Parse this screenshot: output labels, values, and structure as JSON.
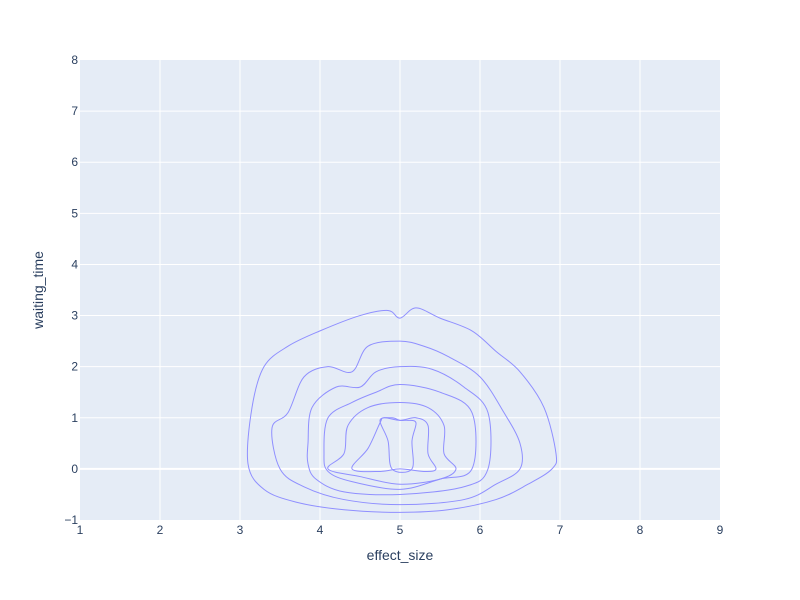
{
  "chart_data": {
    "type": "contour",
    "xlabel": "effect_size",
    "ylabel": "waiting_time",
    "xlim": [
      1,
      9
    ],
    "ylim": [
      -1,
      8
    ],
    "x_ticks": [
      "1",
      "2",
      "3",
      "4",
      "5",
      "6",
      "7",
      "8",
      "9"
    ],
    "y_ticks": [
      "−1",
      "0",
      "1",
      "2",
      "3",
      "4",
      "5",
      "6",
      "7",
      "8"
    ],
    "grid": true,
    "legend": "none",
    "colors": {
      "plot_background": "#E5ECF6",
      "grid": "#ffffff",
      "contour_line": "#8F8FFF",
      "text": "#2a3f5f"
    },
    "contours": [
      {
        "level": 1,
        "points": [
          [
            3.1,
            0.1
          ],
          [
            3.15,
            1.2
          ],
          [
            3.3,
            2.0
          ],
          [
            3.6,
            2.4
          ],
          [
            4.0,
            2.7
          ],
          [
            4.5,
            3.0
          ],
          [
            4.85,
            3.1
          ],
          [
            5.0,
            2.95
          ],
          [
            5.2,
            3.15
          ],
          [
            5.5,
            2.95
          ],
          [
            5.9,
            2.7
          ],
          [
            6.2,
            2.3
          ],
          [
            6.5,
            1.9
          ],
          [
            6.8,
            1.2
          ],
          [
            6.95,
            0.3
          ],
          [
            6.9,
            0.0
          ],
          [
            6.6,
            -0.3
          ],
          [
            6.2,
            -0.6
          ],
          [
            5.6,
            -0.8
          ],
          [
            5.0,
            -0.85
          ],
          [
            4.3,
            -0.8
          ],
          [
            3.7,
            -0.65
          ],
          [
            3.3,
            -0.4
          ]
        ]
      },
      {
        "level": 2,
        "points": [
          [
            3.6,
            1.1
          ],
          [
            3.8,
            1.8
          ],
          [
            4.1,
            2.0
          ],
          [
            4.4,
            1.9
          ],
          [
            4.6,
            2.4
          ],
          [
            5.0,
            2.5
          ],
          [
            5.3,
            2.4
          ],
          [
            5.6,
            2.2
          ],
          [
            6.0,
            1.8
          ],
          [
            6.3,
            1.1
          ],
          [
            6.5,
            0.5
          ],
          [
            6.5,
            0.0
          ],
          [
            6.2,
            -0.3
          ],
          [
            5.8,
            -0.6
          ],
          [
            5.0,
            -0.7
          ],
          [
            4.3,
            -0.6
          ],
          [
            3.8,
            -0.35
          ],
          [
            3.5,
            0.0
          ],
          [
            3.4,
            0.8
          ]
        ]
      },
      {
        "level": 3,
        "points": [
          [
            3.85,
            0.5
          ],
          [
            3.9,
            1.2
          ],
          [
            4.2,
            1.6
          ],
          [
            4.5,
            1.6
          ],
          [
            4.7,
            1.9
          ],
          [
            5.0,
            2.0
          ],
          [
            5.4,
            1.95
          ],
          [
            5.8,
            1.6
          ],
          [
            6.1,
            1.1
          ],
          [
            6.1,
            0.0
          ],
          [
            5.8,
            -0.35
          ],
          [
            5.0,
            -0.5
          ],
          [
            4.3,
            -0.45
          ],
          [
            3.95,
            -0.2
          ],
          [
            3.85,
            0.1
          ]
        ]
      },
      {
        "level": 4,
        "points": [
          [
            4.05,
            0.3
          ],
          [
            4.1,
            1.0
          ],
          [
            4.4,
            1.3
          ],
          [
            4.7,
            1.5
          ],
          [
            5.0,
            1.65
          ],
          [
            5.5,
            1.5
          ],
          [
            5.9,
            1.1
          ],
          [
            5.9,
            0.0
          ],
          [
            5.5,
            -0.2
          ],
          [
            5.0,
            -0.4
          ],
          [
            4.4,
            -0.25
          ],
          [
            4.1,
            -0.05
          ]
        ]
      },
      {
        "level": 5,
        "points": [
          [
            4.1,
            0.0
          ],
          [
            4.3,
            0.3
          ],
          [
            4.35,
            0.85
          ],
          [
            4.6,
            1.2
          ],
          [
            5.0,
            1.3
          ],
          [
            5.35,
            1.2
          ],
          [
            5.55,
            0.85
          ],
          [
            5.55,
            0.3
          ],
          [
            5.7,
            0.0
          ],
          [
            5.5,
            -0.2
          ],
          [
            5.0,
            -0.3
          ],
          [
            4.5,
            -0.15
          ]
        ]
      },
      {
        "level": 6,
        "points": [
          [
            4.4,
            0.0
          ],
          [
            4.6,
            0.4
          ],
          [
            4.75,
            0.9
          ],
          [
            4.8,
            1.0
          ],
          [
            5.0,
            0.95
          ],
          [
            5.2,
            1.0
          ],
          [
            5.35,
            0.85
          ],
          [
            5.35,
            0.3
          ],
          [
            5.45,
            0.0
          ],
          [
            5.3,
            -0.05
          ],
          [
            5.0,
            0.0
          ],
          [
            4.75,
            -0.05
          ]
        ]
      },
      {
        "level": 7,
        "points": [
          [
            4.75,
            0.95
          ],
          [
            4.85,
            0.55
          ],
          [
            4.9,
            0.0
          ],
          [
            5.15,
            0.0
          ],
          [
            5.15,
            0.55
          ],
          [
            5.2,
            0.9
          ],
          [
            5.1,
            0.95
          ],
          [
            5.0,
            0.95
          ],
          [
            4.9,
            1.0
          ]
        ]
      }
    ]
  }
}
